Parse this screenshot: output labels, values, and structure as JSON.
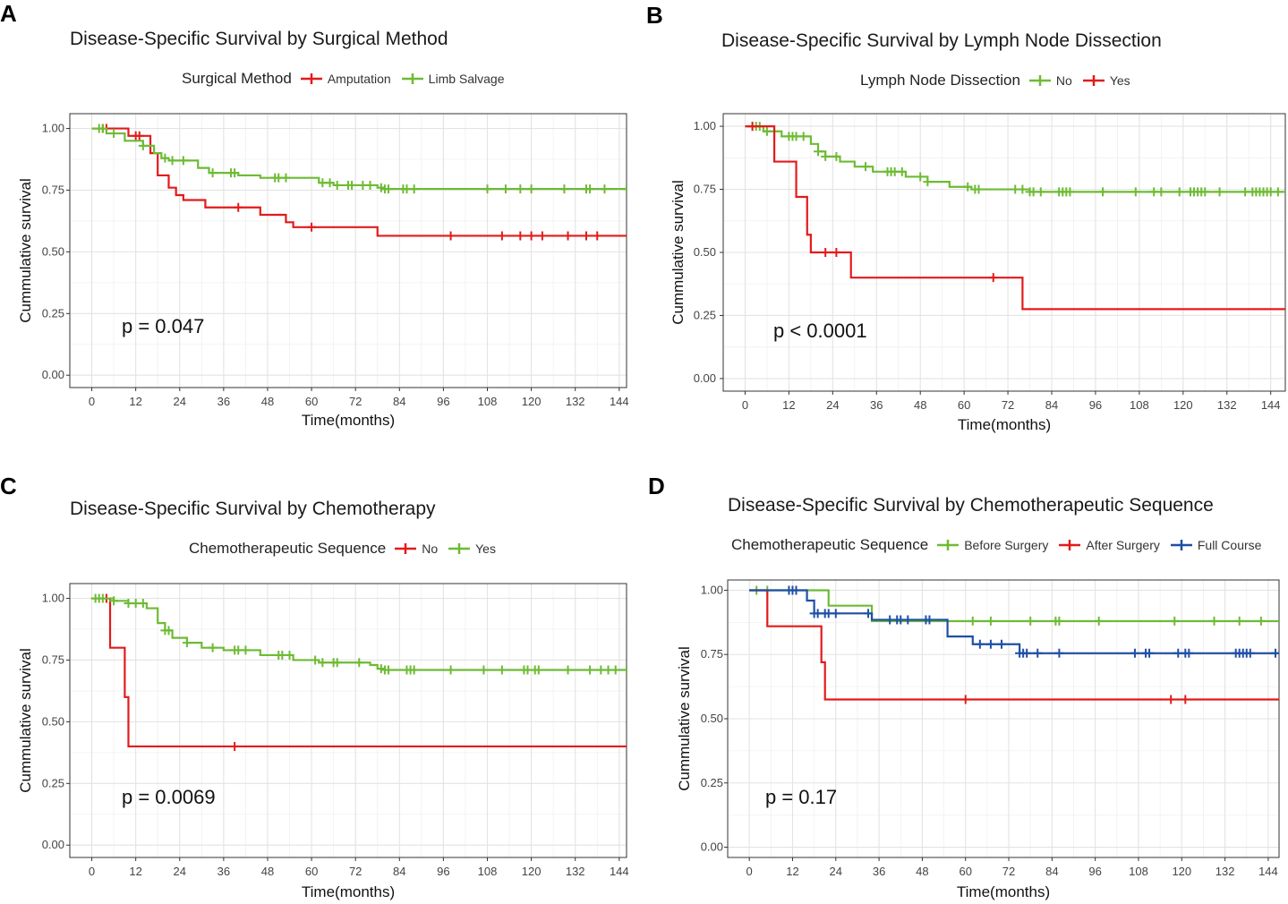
{
  "colors": {
    "red": "#e31a1c",
    "green": "#6dbb33",
    "blue": "#1f4fa6"
  },
  "chart_data": [
    {
      "letter": "A",
      "type": "line",
      "title": "Disease-Specific Survival by Surgical Method",
      "legend_title": "Surgical Method",
      "xlabel": "Time(months)",
      "ylabel": "Cummulative survival",
      "xlim": [
        -6,
        146
      ],
      "ylim": [
        -0.05,
        1.06
      ],
      "xticks": [
        0,
        12,
        24,
        36,
        48,
        60,
        72,
        84,
        96,
        108,
        120,
        132,
        144
      ],
      "yticks": [
        0,
        0.25,
        0.5,
        0.75,
        1.0
      ],
      "ytick_labels": [
        "0.00",
        "0.25",
        "0.50",
        "0.75",
        "1.00"
      ],
      "pvalue": "p = 0.047",
      "series": [
        {
          "name": "Amputation",
          "color": "#e31a1c",
          "steps": [
            [
              0,
              1.0
            ],
            [
              10,
              0.97
            ],
            [
              16,
              0.9
            ],
            [
              18,
              0.81
            ],
            [
              21,
              0.76
            ],
            [
              23,
              0.73
            ],
            [
              25,
              0.71
            ],
            [
              31,
              0.68
            ],
            [
              46,
              0.65
            ],
            [
              53,
              0.62
            ],
            [
              55,
              0.6
            ],
            [
              78,
              0.565
            ],
            [
              146,
              0.565
            ]
          ],
          "censors": [
            3,
            4,
            12,
            13,
            40,
            60,
            98,
            112,
            117,
            120,
            123,
            130,
            135,
            138
          ]
        },
        {
          "name": "Limb Salvage",
          "color": "#6dbb33",
          "steps": [
            [
              0,
              1.0
            ],
            [
              4,
              0.98
            ],
            [
              9,
              0.95
            ],
            [
              14,
              0.93
            ],
            [
              17,
              0.9
            ],
            [
              19,
              0.88
            ],
            [
              21,
              0.87
            ],
            [
              29,
              0.84
            ],
            [
              32,
              0.82
            ],
            [
              40,
              0.81
            ],
            [
              46,
              0.8
            ],
            [
              62,
              0.78
            ],
            [
              66,
              0.77
            ],
            [
              78,
              0.76
            ],
            [
              80,
              0.755
            ],
            [
              146,
              0.755
            ]
          ],
          "censors": [
            2,
            3,
            6,
            14,
            20,
            22,
            25,
            33,
            38,
            39,
            50,
            51,
            53,
            63,
            65,
            67,
            70,
            71,
            74,
            76,
            79,
            80,
            81,
            85,
            86,
            88,
            108,
            113,
            117,
            120,
            129,
            135,
            136,
            140,
            146
          ]
        }
      ]
    },
    {
      "letter": "B",
      "type": "line",
      "title": "Disease-Specific Survival by Lymph Node Dissection",
      "legend_title": "Lymph Node Dissection",
      "xlabel": "Time(months)",
      "ylabel": "Cummulative survival",
      "xlim": [
        -6,
        148
      ],
      "ylim": [
        -0.05,
        1.05
      ],
      "xticks": [
        0,
        12,
        24,
        36,
        48,
        60,
        72,
        84,
        96,
        108,
        120,
        132,
        144
      ],
      "yticks": [
        0,
        0.25,
        0.5,
        0.75,
        1.0
      ],
      "ytick_labels": [
        "0.00",
        "0.25",
        "0.50",
        "0.75",
        "1.00"
      ],
      "pvalue": "p < 0.0001",
      "series": [
        {
          "name": "No",
          "color": "#6dbb33",
          "steps": [
            [
              0,
              1.0
            ],
            [
              5,
              0.98
            ],
            [
              10,
              0.96
            ],
            [
              18,
              0.93
            ],
            [
              20,
              0.9
            ],
            [
              22,
              0.88
            ],
            [
              26,
              0.86
            ],
            [
              30,
              0.84
            ],
            [
              35,
              0.82
            ],
            [
              44,
              0.8
            ],
            [
              50,
              0.78
            ],
            [
              56,
              0.76
            ],
            [
              62,
              0.75
            ],
            [
              78,
              0.74
            ],
            [
              148,
              0.74
            ]
          ],
          "censors": [
            2,
            3,
            4,
            6,
            8,
            12,
            13,
            14,
            16,
            20,
            22,
            25,
            33,
            39,
            40,
            41,
            43,
            48,
            50,
            61,
            63,
            64,
            74,
            76,
            78,
            79,
            81,
            86,
            87,
            88,
            89,
            98,
            107,
            112,
            114,
            119,
            122,
            123,
            124,
            125,
            126,
            130,
            137,
            139,
            140,
            141,
            142,
            143,
            144,
            146
          ]
        },
        {
          "name": "Yes",
          "color": "#e31a1c",
          "steps": [
            [
              0,
              1.0
            ],
            [
              8,
              0.86
            ],
            [
              14,
              0.72
            ],
            [
              17,
              0.57
            ],
            [
              18,
              0.5
            ],
            [
              29,
              0.4
            ],
            [
              76,
              0.275
            ],
            [
              148,
              0.275
            ]
          ],
          "censors": [
            2,
            22,
            25,
            68
          ]
        }
      ]
    },
    {
      "letter": "C",
      "type": "line",
      "title": "Disease-Specific Survival by Chemotherapy",
      "legend_title": "Chemotherapeutic Sequence",
      "xlabel": "Time(months)",
      "ylabel": "Cummulative survival",
      "xlim": [
        -6,
        146
      ],
      "ylim": [
        -0.05,
        1.06
      ],
      "xticks": [
        0,
        12,
        24,
        36,
        48,
        60,
        72,
        84,
        96,
        108,
        120,
        132,
        144
      ],
      "yticks": [
        0,
        0.25,
        0.5,
        0.75,
        1.0
      ],
      "ytick_labels": [
        "0.00",
        "0.25",
        "0.50",
        "0.75",
        "1.00"
      ],
      "pvalue": "p = 0.0069",
      "series": [
        {
          "name": "No",
          "color": "#e31a1c",
          "steps": [
            [
              0,
              1.0
            ],
            [
              5,
              0.8
            ],
            [
              9,
              0.6
            ],
            [
              10,
              0.4
            ],
            [
              146,
              0.4
            ]
          ],
          "censors": [
            4,
            39
          ]
        },
        {
          "name": "Yes",
          "color": "#6dbb33",
          "steps": [
            [
              0,
              1.0
            ],
            [
              6,
              0.99
            ],
            [
              10,
              0.98
            ],
            [
              15,
              0.96
            ],
            [
              18,
              0.9
            ],
            [
              20,
              0.87
            ],
            [
              22,
              0.84
            ],
            [
              26,
              0.82
            ],
            [
              30,
              0.8
            ],
            [
              36,
              0.79
            ],
            [
              46,
              0.77
            ],
            [
              55,
              0.75
            ],
            [
              62,
              0.74
            ],
            [
              76,
              0.73
            ],
            [
              78,
              0.715
            ],
            [
              80,
              0.71
            ],
            [
              146,
              0.71
            ]
          ],
          "censors": [
            1,
            2,
            3,
            6,
            10,
            12,
            14,
            20,
            21,
            26,
            33,
            39,
            40,
            42,
            51,
            52,
            54,
            61,
            63,
            66,
            67,
            73,
            79,
            80,
            81,
            86,
            87,
            88,
            98,
            107,
            112,
            118,
            119,
            121,
            122,
            130,
            136,
            139,
            141,
            143,
            146
          ]
        }
      ]
    },
    {
      "letter": "D",
      "type": "line",
      "title": "Disease-Specific Survival by Chemotherapeutic Sequence",
      "legend_title": "Chemotherapeutic Sequence",
      "xlabel": "Time(months)",
      "ylabel": "Cummulative survival",
      "xlim": [
        -6,
        147
      ],
      "ylim": [
        -0.04,
        1.04
      ],
      "xticks": [
        0,
        12,
        24,
        36,
        48,
        60,
        72,
        84,
        96,
        108,
        120,
        132,
        144
      ],
      "yticks": [
        0,
        0.25,
        0.5,
        0.75,
        1.0
      ],
      "ytick_labels": [
        "0.00",
        "0.25",
        "0.50",
        "0.75",
        "1.00"
      ],
      "pvalue": "p = 0.17",
      "series": [
        {
          "name": "Before Surgery",
          "color": "#6dbb33",
          "steps": [
            [
              0,
              1.0
            ],
            [
              22,
              0.94
            ],
            [
              34,
              0.88
            ],
            [
              147,
              0.88
            ]
          ],
          "censors": [
            2,
            5,
            62,
            67,
            78,
            85,
            86,
            97,
            118,
            129,
            136,
            142
          ]
        },
        {
          "name": "After Surgery",
          "color": "#e31a1c",
          "steps": [
            [
              0,
              1.0
            ],
            [
              5,
              0.86
            ],
            [
              20,
              0.72
            ],
            [
              21,
              0.575
            ],
            [
              147,
              0.575
            ]
          ],
          "censors": [
            60,
            117,
            121
          ]
        },
        {
          "name": "Full Course",
          "color": "#1f4fa6",
          "steps": [
            [
              0,
              1.0
            ],
            [
              16,
              0.96
            ],
            [
              18,
              0.91
            ],
            [
              34,
              0.885
            ],
            [
              55,
              0.82
            ],
            [
              62,
              0.79
            ],
            [
              75,
              0.755
            ],
            [
              147,
              0.755
            ]
          ],
          "censors": [
            11,
            12,
            13,
            18,
            19,
            21,
            22,
            24,
            33,
            39,
            41,
            42,
            44,
            49,
            50,
            64,
            67,
            70,
            75,
            76,
            77,
            80,
            86,
            107,
            110,
            111,
            119,
            121,
            122,
            135,
            136,
            137,
            138,
            139,
            146
          ]
        }
      ]
    }
  ]
}
